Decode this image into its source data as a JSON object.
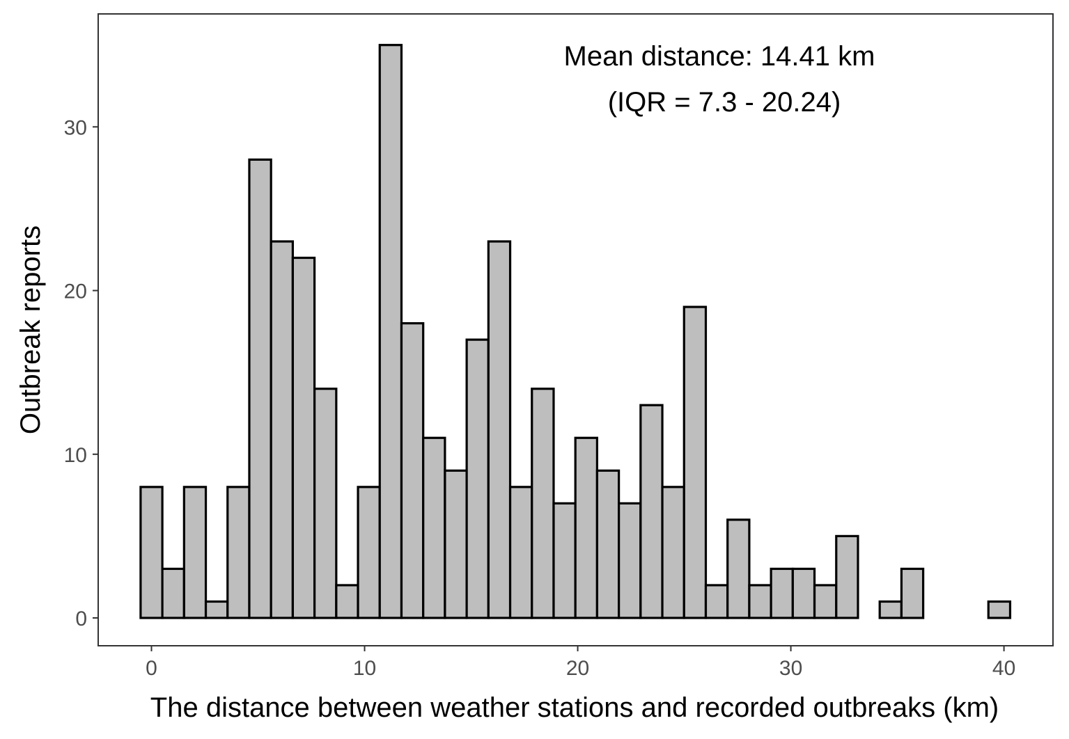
{
  "chart_data": {
    "type": "bar",
    "title": "",
    "xlabel": "The distance between weather stations and recorded outbreaks (km)",
    "ylabel": "Outbreak reports",
    "bin_width": 1.02,
    "x": [
      0.0,
      1.02,
      2.04,
      3.06,
      4.08,
      5.1,
      6.12,
      7.14,
      8.16,
      9.18,
      10.2,
      11.22,
      12.24,
      13.26,
      14.28,
      15.3,
      16.32,
      17.34,
      18.36,
      19.38,
      20.4,
      21.42,
      22.44,
      23.46,
      24.48,
      25.5,
      26.52,
      27.54,
      28.56,
      29.58,
      30.6,
      31.62,
      32.64,
      33.66,
      34.68,
      35.7,
      36.72,
      37.74,
      38.76,
      39.78
    ],
    "values": [
      8,
      3,
      8,
      1,
      8,
      28,
      23,
      22,
      14,
      2,
      8,
      35,
      18,
      11,
      9,
      17,
      23,
      8,
      14,
      7,
      11,
      9,
      7,
      13,
      8,
      19,
      2,
      6,
      2,
      3,
      3,
      2,
      5,
      0,
      1,
      3,
      0,
      0,
      0,
      1
    ],
    "xlim": [
      -2.5,
      42.3
    ],
    "ylim": [
      -1.7,
      36.9
    ],
    "xticks": [
      0,
      10,
      20,
      30,
      40
    ],
    "xtick_labels": [
      "0",
      "10",
      "20",
      "30",
      "40"
    ],
    "yticks": [
      0,
      10,
      20,
      30
    ],
    "ytick_labels": [
      "0",
      "10",
      "20",
      "30"
    ],
    "grid": false,
    "legend": "none",
    "bar_fill": "#bebebe",
    "bar_stroke": "#000000",
    "panel_border": "#333333",
    "tick_label_color": "#4d4d4d",
    "annotations": [
      "Mean distance: 14.41 km",
      "(IQR = 7.3 - 20.24)"
    ]
  }
}
